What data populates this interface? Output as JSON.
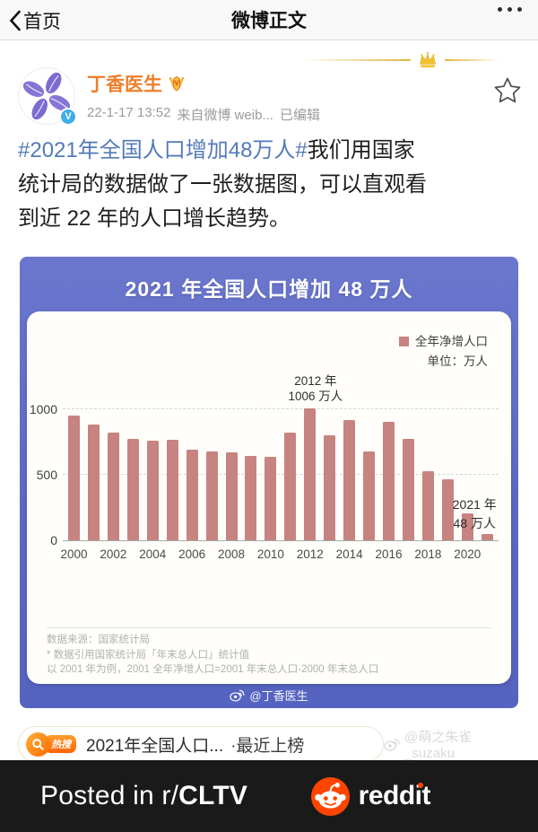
{
  "nav": {
    "back_label": "首页",
    "title": "微博正文"
  },
  "post": {
    "author": "丁香医生",
    "timestamp": "22-1-17 13:52",
    "source": "来自微博 weib...",
    "edited_label": "已编辑",
    "hashtag": "#2021年全国人口增加48万人#",
    "body_line1": "我们用国家",
    "body_line2": "统计局的数据做了一张数据图，可以直观看",
    "body_line3": "到近 22 年的人口增长趋势。"
  },
  "chart": {
    "title": "2021 年全国人口增加 48 万人",
    "legend_label": "全年净增人口",
    "unit_label": "单位：万人",
    "annotation_2012_line1": "2012 年",
    "annotation_2012_line2": "1006 万人",
    "annotation_2021_line1": "2021 年",
    "annotation_2021_line2": "48 万人",
    "source_note": "数据来源：国家统计局",
    "method_note1": "* 数据引用国家统计局「年末总人口」统计值",
    "method_note2": "以 2001 年为例，2001 全年净增人口=2001 年末总人口-2000 年末总人口",
    "watermark": "@丁香医生"
  },
  "chart_data": {
    "type": "bar",
    "title": "2021 年全国人口增加 48 万人",
    "unit": "万人",
    "categories": [
      2000,
      2001,
      2002,
      2003,
      2004,
      2005,
      2006,
      2007,
      2008,
      2009,
      2010,
      2011,
      2012,
      2013,
      2014,
      2015,
      2016,
      2017,
      2018,
      2019,
      2020,
      2021
    ],
    "series": [
      {
        "name": "全年净增人口",
        "values": [
          957,
          884,
          826,
          774,
          761,
          768,
          692,
          681,
          673,
          648,
          641,
          825,
          1006,
          804,
          920,
          680,
          906,
          779,
          530,
          467,
          204,
          48
        ]
      }
    ],
    "yticks": [
      0,
      500,
      1000
    ],
    "ylim": [
      0,
      1030
    ],
    "xtick_step": 2,
    "grid": "dashed-horizontal",
    "legend_position": "top-right",
    "bar_color": "#c7837f",
    "annotations": [
      {
        "x": 2012,
        "text": "2012 年 1006 万人"
      },
      {
        "x": 2021,
        "text": "2021 年 48 万人"
      }
    ]
  },
  "hotsearch": {
    "badge": "热搜",
    "text": "2021年全国人口...",
    "suffix": "·最近上榜"
  },
  "page_watermark": "@萌之朱雀_suzaku",
  "banner": {
    "posted_prefix": "Posted in r/",
    "subreddit": "CLTV",
    "brand": "reddit"
  },
  "colors": {
    "hashtag_blue": "#527ab8",
    "author_orange": "#ee7f2c",
    "chart_purple": "#5c69c4",
    "bar_pink": "#c7837f",
    "reddit_orange": "#ff4500",
    "banner_bg": "#1a1a1b"
  }
}
